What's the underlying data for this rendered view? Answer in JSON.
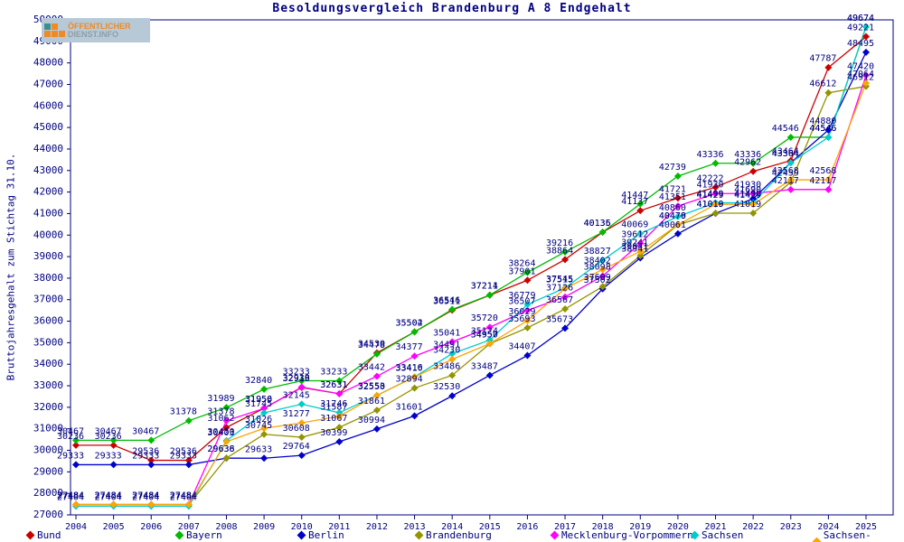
{
  "title": "Besoldungsvergleich Brandenburg A 8 Endgehalt",
  "logo": {
    "line1": "ÖFFENTLICHER",
    "line2": "DIENST.INFO"
  },
  "colors": {
    "axis": "#000080",
    "label": "#000080",
    "background": "#ffffff"
  },
  "chart_data": {
    "type": "line",
    "title": "Besoldungsvergleich Brandenburg A 8 Endgehalt",
    "xlabel": "",
    "ylabel": "Bruttojahresgehalt zum Stichtag 31.10.",
    "ylim": [
      27000,
      50000
    ],
    "ytick_step": 1000,
    "grid": false,
    "legend_position": "bottom",
    "point_labels": true,
    "x": [
      2004,
      2005,
      2006,
      2007,
      2008,
      2009,
      2010,
      2011,
      2012,
      2013,
      2014,
      2015,
      2016,
      2017,
      2018,
      2019,
      2020,
      2021,
      2022,
      2023,
      2024,
      2025
    ],
    "series": [
      {
        "name": "Bund",
        "color": "#cc0000",
        "values": [
          30236,
          30236,
          29536,
          29536,
          31062,
          31956,
          32919,
          32631,
          34530,
          35502,
          36511,
          37211,
          37901,
          38864,
          40135,
          41137,
          41721,
          42222,
          42962,
          43464,
          47787,
          49221
        ]
      },
      {
        "name": "Bayern",
        "color": "#00bb00",
        "values": [
          30467,
          30467,
          30467,
          31378,
          31989,
          32840,
          33233,
          33233,
          34478,
          35504,
          36546,
          37214,
          38264,
          39216,
          40136,
          41447,
          42739,
          43336,
          43336,
          44546,
          44546,
          49674
        ]
      },
      {
        "name": "Berlin",
        "color": "#0000cc",
        "values": [
          29333,
          29333,
          29333,
          29333,
          29636,
          29633,
          29764,
          30399,
          30994,
          31601,
          32530,
          33487,
          34407,
          35673,
          37502,
          38941,
          40061,
          41010,
          41690,
          43364,
          44880,
          48495
        ]
      },
      {
        "name": "Brandenburg",
        "color": "#949400",
        "values": [
          27484,
          27484,
          27484,
          27484,
          29638,
          30745,
          30608,
          31067,
          31861,
          32894,
          33486,
          34950,
          35693,
          36567,
          37609,
          39041,
          40476,
          41019,
          41019,
          42459,
          46612,
          46912
        ]
      },
      {
        "name": "Mecklenburg-Vorpommern",
        "color": "#ff00ff",
        "values": [
          27484,
          27484,
          27484,
          27484,
          31378,
          31950,
          32938,
          32631,
          33442,
          34377,
          35041,
          35720,
          36507,
          37126,
          38098,
          39612,
          41351,
          41930,
          41930,
          42117,
          42117,
          47420
        ]
      },
      {
        "name": "Sachsen",
        "color": "#00cccc",
        "values": [
          27404,
          27404,
          27404,
          27404,
          30450,
          31745,
          32145,
          31746,
          32553,
          33416,
          34491,
          35124,
          36779,
          37545,
          38827,
          40069,
          40860,
          41499,
          41499,
          43364,
          44546,
          49674
        ]
      },
      {
        "name": "Sachsen-Anhalt",
        "color": "#ffa500",
        "values": [
          27484,
          27484,
          27484,
          27484,
          30403,
          31026,
          31277,
          31587,
          32550,
          33410,
          34230,
          34957,
          36029,
          37515,
          38402,
          39241,
          40479,
          41429,
          41429,
          42568,
          42568,
          47064
        ]
      }
    ]
  },
  "legend_x_positions": [
    30,
    195,
    330,
    460,
    610,
    765,
    900
  ]
}
